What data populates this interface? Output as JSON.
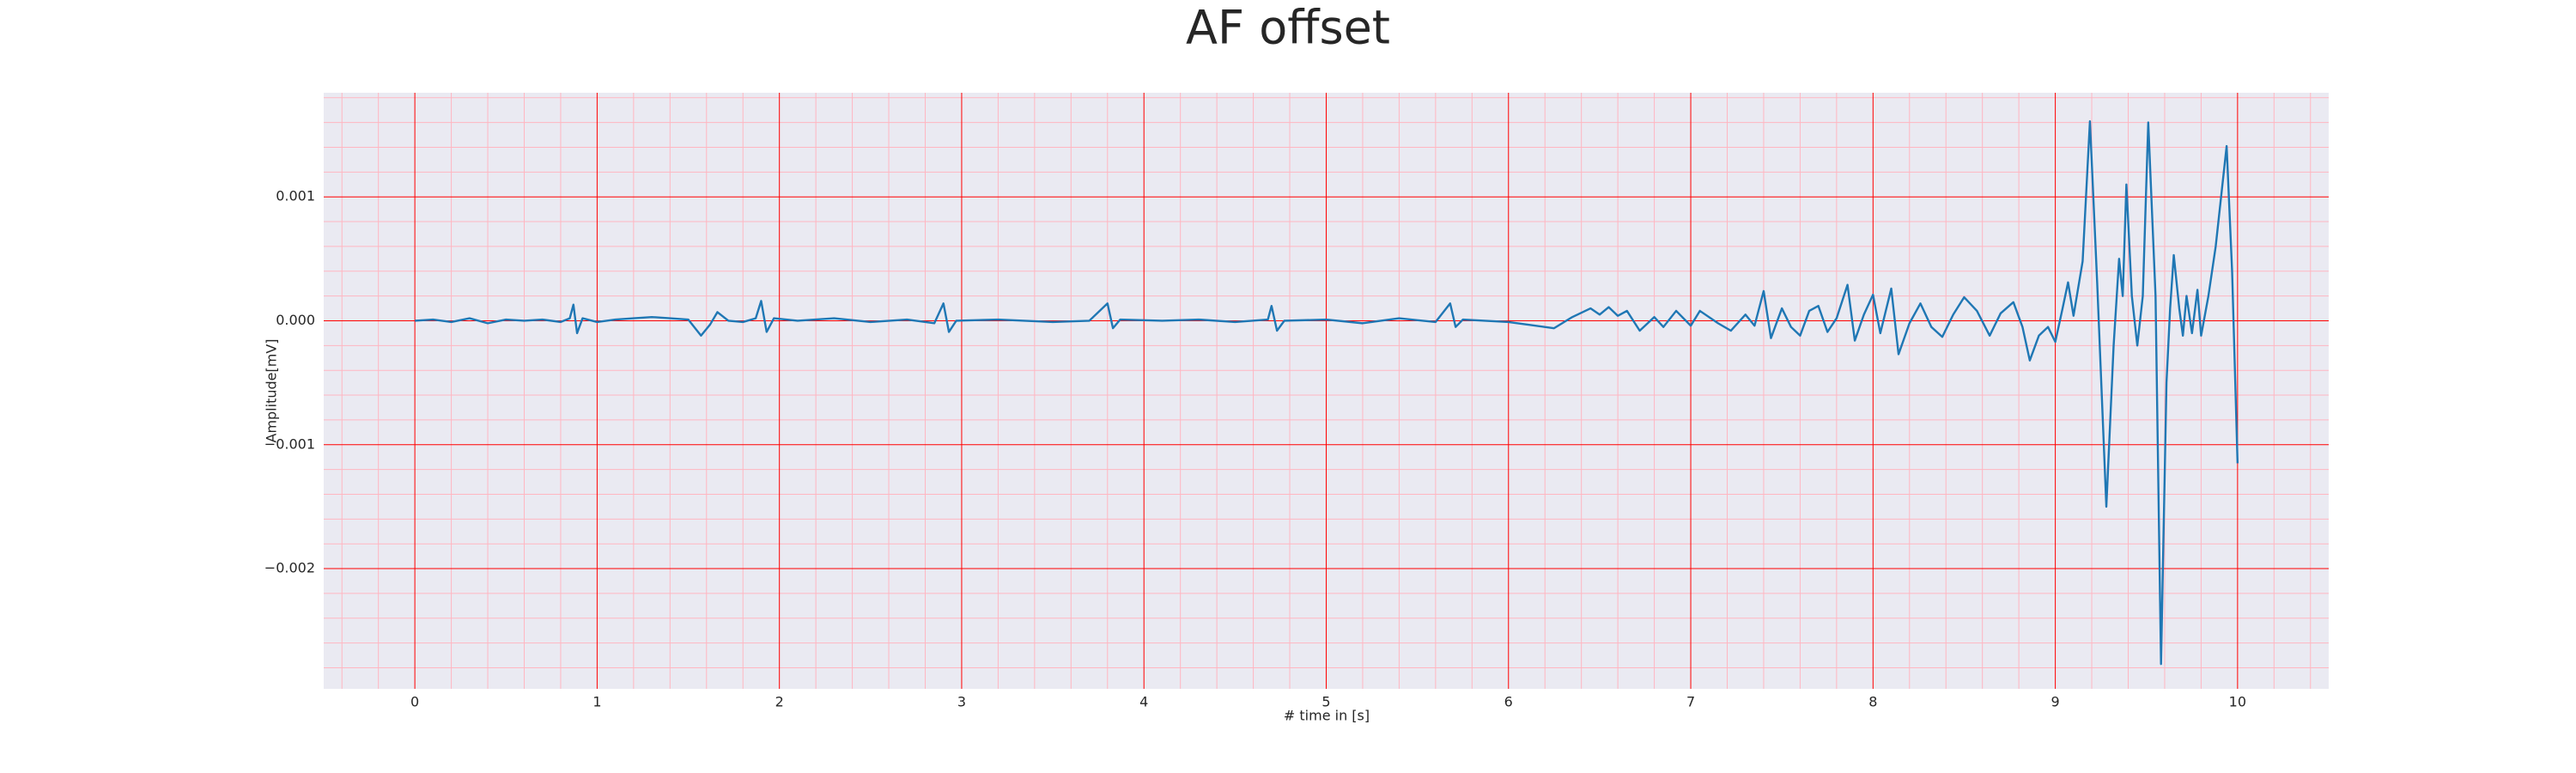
{
  "chart_data": {
    "type": "line",
    "title": "AF offset",
    "xlabel": "# time in [s]",
    "ylabel": "Amplitude[mV]",
    "color": "#1f77b4",
    "background": "#eaeaf2",
    "grid": true,
    "grid_color": "#ff0000",
    "minor_grid_color": "#ffb6c1",
    "xlim": [
      -0.5,
      10.5
    ],
    "ylim": [
      -0.00297,
      0.00184
    ],
    "xticks": [
      0,
      1,
      2,
      3,
      4,
      5,
      6,
      7,
      8,
      9,
      10
    ],
    "yticks": [
      {
        "value": -0.002,
        "label": "−0.002"
      },
      {
        "value": -0.001,
        "label": "−0.001"
      },
      {
        "value": 0,
        "label": "0.000"
      },
      0.001
    ],
    "xminorticks": [
      -0.4,
      -0.2,
      0.2,
      0.4,
      0.6,
      0.8,
      1.2,
      1.4,
      1.6,
      1.8,
      2.2,
      2.4,
      2.6,
      2.8,
      3.2,
      3.4,
      3.6,
      3.8,
      4.2,
      4.4,
      4.6,
      4.8,
      5.2,
      5.4,
      5.6,
      5.8,
      6.2,
      6.4,
      6.6,
      6.8,
      7.2,
      7.4,
      7.6,
      7.8,
      8.2,
      8.4,
      8.6,
      8.8,
      9.2,
      9.4,
      9.6,
      9.8,
      10.2,
      10.4
    ],
    "yminorticks": [
      -0.0028,
      -0.0026,
      -0.0024,
      -0.0022,
      -0.0018,
      -0.0016,
      -0.0014,
      -0.0012,
      -0.0008,
      -0.0006,
      -0.0004,
      -0.0002,
      0.0002,
      0.0004,
      0.0006,
      0.0008,
      0.0012,
      0.0014,
      0.0016,
      0.0018
    ],
    "x": [
      0,
      0.1,
      0.2,
      0.3,
      0.4,
      0.5,
      0.6,
      0.7,
      0.8,
      0.85,
      0.87,
      0.89,
      0.92,
      1.0,
      1.1,
      1.2,
      1.3,
      1.4,
      1.5,
      1.57,
      1.62,
      1.66,
      1.72,
      1.8,
      1.87,
      1.9,
      1.93,
      1.97,
      2.1,
      2.3,
      2.5,
      2.7,
      2.85,
      2.9,
      2.93,
      2.97,
      3.2,
      3.5,
      3.7,
      3.8,
      3.83,
      3.87,
      4.1,
      4.3,
      4.5,
      4.68,
      4.7,
      4.73,
      4.77,
      5.0,
      5.2,
      5.4,
      5.6,
      5.68,
      5.71,
      5.75,
      6.0,
      6.1,
      6.25,
      6.35,
      6.45,
      6.5,
      6.55,
      6.6,
      6.65,
      6.72,
      6.8,
      6.85,
      6.92,
      7.0,
      7.05,
      7.15,
      7.22,
      7.3,
      7.35,
      7.4,
      7.44,
      7.5,
      7.55,
      7.6,
      7.65,
      7.7,
      7.75,
      7.8,
      7.86,
      7.9,
      7.95,
      8.0,
      8.04,
      8.1,
      8.14,
      8.2,
      8.26,
      8.32,
      8.38,
      8.44,
      8.5,
      8.57,
      8.64,
      8.7,
      8.77,
      8.82,
      8.86,
      8.91,
      8.96,
      9.0,
      9.04,
      9.07,
      9.1,
      9.15,
      9.19,
      9.23,
      9.28,
      9.32,
      9.35,
      9.37,
      9.39,
      9.42,
      9.45,
      9.48,
      9.51,
      9.55,
      9.58,
      9.61,
      9.63,
      9.65,
      9.68,
      9.7,
      9.72,
      9.75,
      9.78,
      9.8,
      9.84,
      9.88,
      9.94,
      9.97,
      10.0
    ],
    "values": [
      0,
      1e-05,
      -1e-05,
      2e-05,
      -2e-05,
      1e-05,
      0,
      1e-05,
      -1e-05,
      2e-05,
      0.00013,
      -0.0001,
      2e-05,
      -1e-05,
      1e-05,
      2e-05,
      3e-05,
      2e-05,
      1e-05,
      -0.00012,
      -3e-05,
      7e-05,
      0,
      -1e-05,
      2e-05,
      0.00016,
      -9e-05,
      2e-05,
      0,
      2e-05,
      -1e-05,
      1e-05,
      -2e-05,
      0.00014,
      -9e-05,
      0,
      1e-05,
      -1e-05,
      0,
      0.00014,
      -6e-05,
      1e-05,
      0,
      1e-05,
      -1e-05,
      1e-05,
      0.00012,
      -8e-05,
      0,
      1e-05,
      -2e-05,
      2e-05,
      -1e-05,
      0.00014,
      -5e-05,
      1e-05,
      -1e-05,
      -3e-05,
      -6e-05,
      3e-05,
      0.0001,
      5e-05,
      0.00011,
      4e-05,
      8e-05,
      -8e-05,
      3e-05,
      -5e-05,
      8e-05,
      -4e-05,
      8e-05,
      -2e-05,
      -8e-05,
      5e-05,
      -4e-05,
      0.00024,
      -0.00014,
      0.0001,
      -5e-05,
      -0.00012,
      8e-05,
      0.00012,
      -9e-05,
      2e-05,
      0.00029,
      -0.00016,
      5e-05,
      0.00021,
      -0.0001,
      0.00026,
      -0.00027,
      -2e-05,
      0.00014,
      -5e-05,
      -0.00013,
      5e-05,
      0.00019,
      8e-05,
      -0.00012,
      6e-05,
      0.00015,
      -5e-05,
      -0.00032,
      -0.00012,
      -5e-05,
      -0.00017,
      0.0001,
      0.00031,
      4e-05,
      0.00048,
      0.00161,
      0.0003,
      -0.0015,
      -0.0002,
      0.0005,
      0.0002,
      0.0011,
      0.0002,
      -0.0002,
      0.0002,
      0.0016,
      0.0002,
      -0.00277,
      -0.0005,
      0.0001,
      0.00053,
      0.0001,
      -0.00012,
      0.0002,
      -0.0001,
      0.00025,
      -0.00012,
      0.0002,
      0.0006,
      0.00141,
      0.0004,
      -0.00115
    ]
  }
}
